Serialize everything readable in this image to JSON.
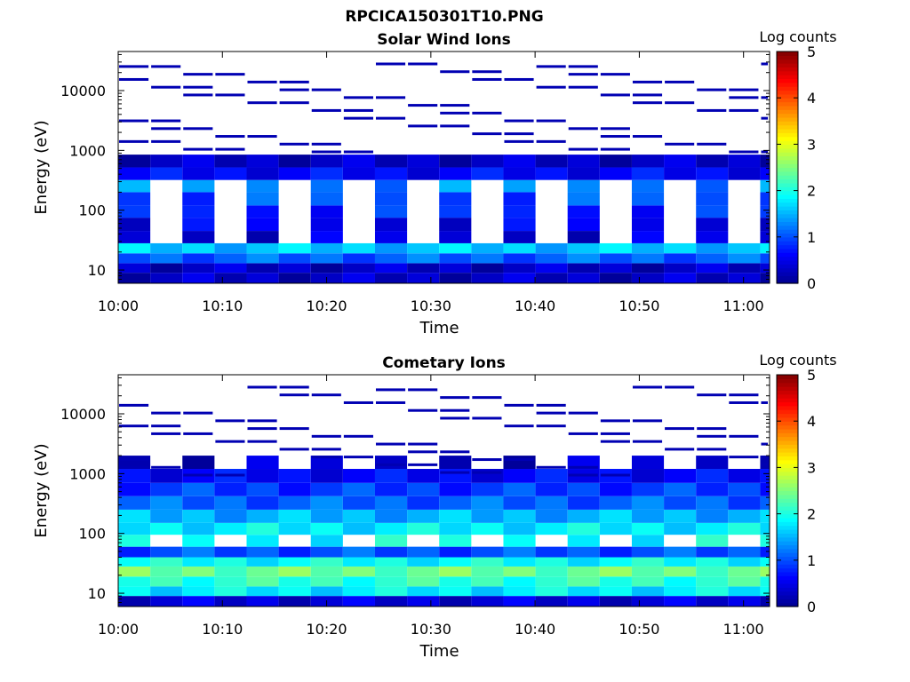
{
  "figure": {
    "title": "RPCICA150301T10.PNG"
  },
  "colormap": [
    "#00008f",
    "#0000ff",
    "#007fff",
    "#00ffff",
    "#7fff7f",
    "#ffff00",
    "#ff7f00",
    "#ff0000",
    "#7f0000"
  ],
  "chart_data": [
    {
      "type": "heatmap",
      "title": "Solar Wind Ions",
      "xlabel": "Time",
      "ylabel": "Energy (eV)",
      "x_tick_labels": [
        "10:00",
        "10:10",
        "10:20",
        "10:30",
        "10:40",
        "10:50",
        "11:00"
      ],
      "x_tick_minutes": [
        0,
        10,
        20,
        30,
        40,
        50,
        60
      ],
      "xlim_minutes": [
        0,
        62.5
      ],
      "y_scale": "log",
      "y_tick_labels": [
        "10",
        "100",
        "1000",
        "10000"
      ],
      "y_tick_values": [
        10,
        100,
        1000,
        10000
      ],
      "ylim": [
        6,
        45000
      ],
      "colorbar_label": "Log counts",
      "colorbar_ticks": [
        "0",
        "1",
        "2",
        "3",
        "4",
        "5"
      ],
      "colorbar_range": [
        0,
        5
      ],
      "energy_bands": [
        {
          "emin": 6,
          "emax": 9,
          "level": 0.3,
          "sweep": "all"
        },
        {
          "emin": 9,
          "emax": 13,
          "level": 0.3,
          "sweep": "all"
        },
        {
          "emin": 13,
          "emax": 19,
          "level": 1.1,
          "sweep": "all"
        },
        {
          "emin": 19,
          "emax": 28,
          "level": 1.6,
          "sweep": "all"
        },
        {
          "emin": 28,
          "emax": 45,
          "level": 0.4,
          "sweep": "odd"
        },
        {
          "emin": 45,
          "emax": 75,
          "level": 0.5,
          "sweep": "odd"
        },
        {
          "emin": 75,
          "emax": 120,
          "level": 0.8,
          "sweep": "odd"
        },
        {
          "emin": 120,
          "emax": 200,
          "level": 1.0,
          "sweep": "odd"
        },
        {
          "emin": 200,
          "emax": 320,
          "level": 1.3,
          "sweep": "odd"
        },
        {
          "emin": 320,
          "emax": 520,
          "level": 0.6,
          "sweep": "all"
        },
        {
          "emin": 520,
          "emax": 850,
          "level": 0.3,
          "sweep": "all"
        }
      ]
    },
    {
      "type": "heatmap",
      "title": "Cometary Ions",
      "xlabel": "Time",
      "ylabel": "Energy (eV)",
      "x_tick_labels": [
        "10:00",
        "10:10",
        "10:20",
        "10:30",
        "10:40",
        "10:50",
        "11:00"
      ],
      "x_tick_minutes": [
        0,
        10,
        20,
        30,
        40,
        50,
        60
      ],
      "xlim_minutes": [
        0,
        62.5
      ],
      "y_scale": "log",
      "y_tick_labels": [
        "10",
        "100",
        "1000",
        "10000"
      ],
      "y_tick_values": [
        10,
        100,
        1000,
        10000
      ],
      "ylim": [
        6,
        45000
      ],
      "colorbar_label": "Log counts",
      "colorbar_ticks": [
        "0",
        "1",
        "2",
        "3",
        "4",
        "5"
      ],
      "colorbar_range": [
        0,
        5
      ],
      "energy_bands": [
        {
          "emin": 6,
          "emax": 9,
          "level": 0.4,
          "sweep": "all"
        },
        {
          "emin": 9,
          "emax": 13,
          "level": 1.8,
          "sweep": "all"
        },
        {
          "emin": 13,
          "emax": 19,
          "level": 2.1,
          "sweep": "all"
        },
        {
          "emin": 19,
          "emax": 28,
          "level": 2.4,
          "sweep": "all"
        },
        {
          "emin": 28,
          "emax": 40,
          "level": 1.9,
          "sweep": "all"
        },
        {
          "emin": 40,
          "emax": 60,
          "level": 1.0,
          "sweep": "all"
        },
        {
          "emin": 60,
          "emax": 95,
          "level": 1.9,
          "sweep": "odd"
        },
        {
          "emin": 95,
          "emax": 150,
          "level": 1.8,
          "sweep": "all"
        },
        {
          "emin": 150,
          "emax": 250,
          "level": 1.5,
          "sweep": "all"
        },
        {
          "emin": 250,
          "emax": 420,
          "level": 1.1,
          "sweep": "all"
        },
        {
          "emin": 420,
          "emax": 700,
          "level": 0.9,
          "sweep": "all"
        },
        {
          "emin": 700,
          "emax": 1200,
          "level": 0.6,
          "sweep": "all"
        },
        {
          "emin": 1200,
          "emax": 2000,
          "level": 0.3,
          "sweep": "odd"
        }
      ]
    }
  ]
}
